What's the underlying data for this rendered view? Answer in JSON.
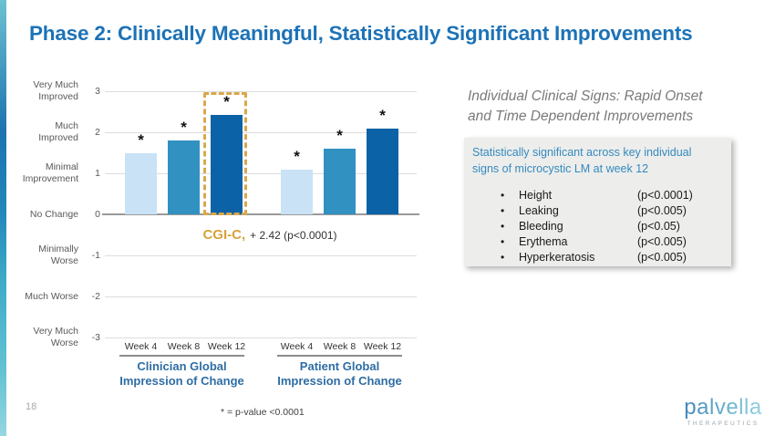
{
  "slide": {
    "title": "Phase 2: Clinically Meaningful, Statistically Significant Improvements",
    "page_number": "18",
    "footnote": "* = p-value <0.0001"
  },
  "chart_data": {
    "type": "bar",
    "categories": [
      "Week 4",
      "Week 8",
      "Week 12"
    ],
    "series": [
      {
        "name": "Clinician Global Impression of Change",
        "values": [
          1.5,
          1.8,
          2.42
        ]
      },
      {
        "name": "Patient Global Impression of Change",
        "values": [
          1.1,
          1.6,
          2.1
        ]
      }
    ],
    "ylim": [
      -3,
      3
    ],
    "grid": true,
    "y_axis": [
      {
        "label": "Very Much\nImproved",
        "value": 3
      },
      {
        "label": "Much\nImproved",
        "value": 2
      },
      {
        "label": "Minimal\nImprovement",
        "value": 1
      },
      {
        "label": "No Change",
        "value": 0
      },
      {
        "label": "Minimally\nWorse",
        "value": -1
      },
      {
        "label": "Much Worse",
        "value": -2
      },
      {
        "label": "Very Much\nWorse",
        "value": -3
      }
    ],
    "bar_colors": [
      "#C9E2F5",
      "#3191C1",
      "#0B62A6"
    ],
    "significance_marker": "*",
    "highlight": {
      "series": 0,
      "category": "Week 12",
      "box_color": "#D9A84A"
    },
    "annotation": {
      "label": "CGI-C,",
      "text": "+ 2.42 (p<0.0001)",
      "label_color": "#D7A23C"
    },
    "groups": [
      {
        "title": "Clinician Global\nImpression of Change"
      },
      {
        "title": "Patient Global\nImpression of Change"
      }
    ]
  },
  "signs_panel": {
    "heading": "Individual Clinical Signs: Rapid Onset\nand Time Dependent Improvements",
    "box": {
      "header": "Statistically significant across key individual\nsigns of microcystic LM at week 12",
      "header_color": "#338ABF",
      "bullet_glyph": "•",
      "items": [
        {
          "name": "Height",
          "pvalue": "(p<0.0001)"
        },
        {
          "name": "Leaking",
          "pvalue": "(p<0.005)"
        },
        {
          "name": "Bleeding",
          "pvalue": "(p<0.05)"
        },
        {
          "name": "Erythema",
          "pvalue": "(p<0.005)"
        },
        {
          "name": "Hyperkeratosis",
          "pvalue": "(p<0.005)"
        }
      ]
    }
  },
  "logo": {
    "wordmark": "palvella",
    "tagline": "THERAPEUTICS"
  },
  "colors": {
    "title_blue": "#1C72B7",
    "accent_gold": "#D9A84A",
    "group_title_blue": "#2E6DA4",
    "axis_gray": "#595959"
  }
}
